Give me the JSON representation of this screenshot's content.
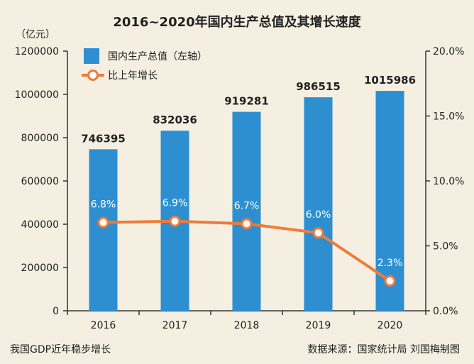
{
  "colors": {
    "bar": "#2e8fd0",
    "line": "#ef7b3a",
    "background": "#f4efe1"
  },
  "chart_data": {
    "type": "bar",
    "title": "2016~2020年国内生产总值及其增长速度",
    "left_unit": "（亿元）",
    "categories": [
      "2016",
      "2017",
      "2018",
      "2019",
      "2020"
    ],
    "series": [
      {
        "name": "国内生产总值（左轴）",
        "type": "bar",
        "axis": "left",
        "values": [
          746395,
          832036,
          919281,
          986515,
          1015986
        ],
        "labels": [
          "746395",
          "832036",
          "919281",
          "986515",
          "1015986"
        ]
      },
      {
        "name": "比上年增长",
        "type": "line",
        "axis": "right",
        "values": [
          6.8,
          6.9,
          6.7,
          6.0,
          2.3
        ],
        "labels": [
          "6.8%",
          "6.9%",
          "6.7%",
          "6.0%",
          "2.3%"
        ]
      }
    ],
    "left_axis": {
      "ylim": [
        0,
        1200000
      ],
      "ticks": [
        0,
        200000,
        400000,
        600000,
        800000,
        1000000,
        1200000
      ],
      "tick_labels": [
        "0",
        "200000",
        "400000",
        "600000",
        "800000",
        "1000000",
        "1200000"
      ]
    },
    "right_axis": {
      "ylim": [
        0,
        20
      ],
      "ticks": [
        0,
        5,
        10,
        15,
        20
      ],
      "tick_labels": [
        "0.0%",
        "5.0%",
        "10.0%",
        "15.0%",
        "20.0%"
      ]
    },
    "legend": {
      "position": "top-left",
      "items": [
        "国内生产总值（左轴）",
        "比上年增长"
      ]
    },
    "grid": false
  },
  "footer": {
    "left": "我国GDP近年稳步增长",
    "right": "数据来源：国家统计局  刘国梅制图"
  }
}
